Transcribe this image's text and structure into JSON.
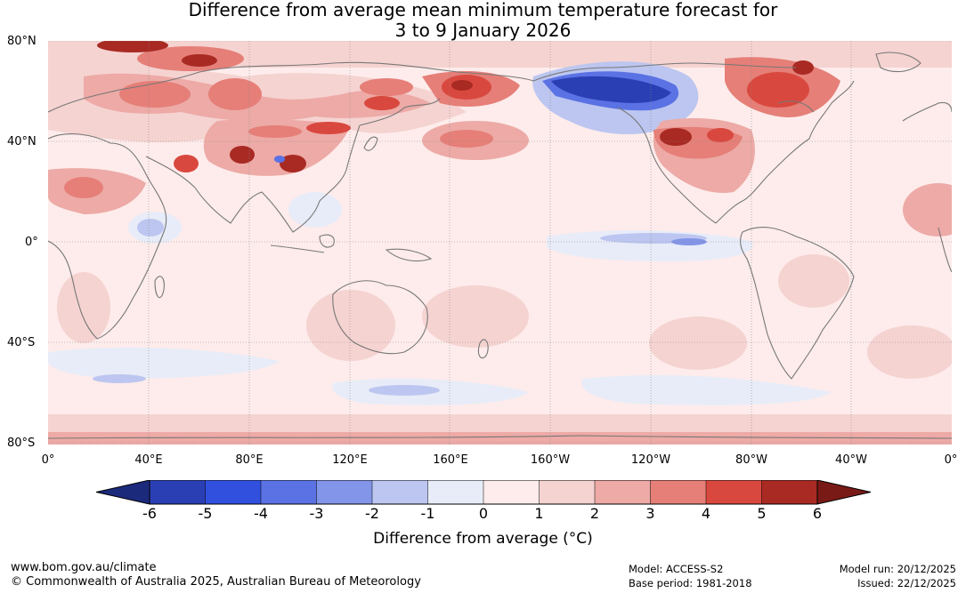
{
  "title": {
    "line1": "Difference from average mean minimum temperature forecast for",
    "line2": "3 to 9 January 2026"
  },
  "map": {
    "lat_labels": [
      "80°N",
      "40°N",
      "0°",
      "40°S",
      "80°S"
    ],
    "lon_labels": [
      "0°",
      "40°E",
      "80°E",
      "120°E",
      "160°E",
      "160°W",
      "120°W",
      "80°W",
      "40°W",
      "0°"
    ]
  },
  "colorbar": {
    "ticks": [
      "-6",
      "-5",
      "-4",
      "-3",
      "-2",
      "-1",
      "0",
      "1",
      "2",
      "3",
      "4",
      "5",
      "6"
    ],
    "colors": [
      "#1c2a7c",
      "#2a3fb4",
      "#3150de",
      "#5b72e4",
      "#8295e8",
      "#bcc6f0",
      "#e8ecf8",
      "#fdeceb",
      "#f5d3d1",
      "#edaaa6",
      "#e57f78",
      "#d9483e",
      "#a82a23",
      "#7a1a16"
    ],
    "label": "Difference from average (°C)"
  },
  "footer": {
    "url": "www.bom.gov.au/climate",
    "copyright": "© Commonwealth of Australia 2025, Australian Bureau of Meteorology",
    "model": "Model: ACCESS-S2",
    "base_period": "Base period: 1981-2018",
    "model_run": "Model run: 20/12/2025",
    "issued": "Issued: 22/12/2025"
  }
}
